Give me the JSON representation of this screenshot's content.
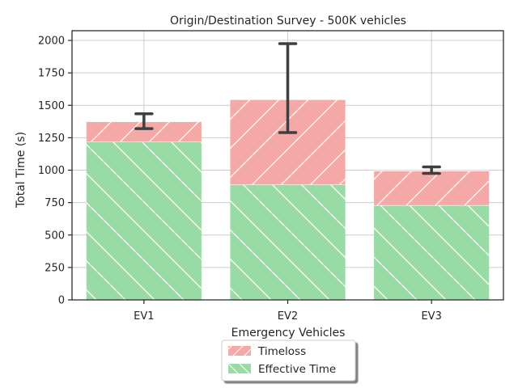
{
  "chart_data": {
    "type": "bar",
    "stacked": true,
    "title": "Origin/Destination Survey - 500K vehicles",
    "xlabel": "Emergency Vehicles",
    "ylabel": "Total Time (s)",
    "categories": [
      "EV1",
      "EV2",
      "EV3"
    ],
    "ylim": [
      0,
      2075
    ],
    "yticks": [
      0,
      250,
      500,
      750,
      1000,
      1250,
      1500,
      1750,
      2000
    ],
    "grid": true,
    "legend_position": "bottom-center",
    "series": [
      {
        "name": "Effective Time",
        "values": [
          1220,
          890,
          730
        ],
        "color": "#98dba5",
        "hatch": "backslash"
      },
      {
        "name": "Timeloss",
        "values": [
          155,
          655,
          265
        ],
        "color": "#f4a9a6",
        "hatch": "slash"
      }
    ],
    "error_bars": [
      {
        "category": "EV1",
        "low": 1320,
        "high": 1435
      },
      {
        "category": "EV2",
        "low": 1290,
        "high": 1975
      },
      {
        "category": "EV3",
        "low": 975,
        "high": 1025
      }
    ],
    "error_bar_color": "#3f3f3f"
  }
}
